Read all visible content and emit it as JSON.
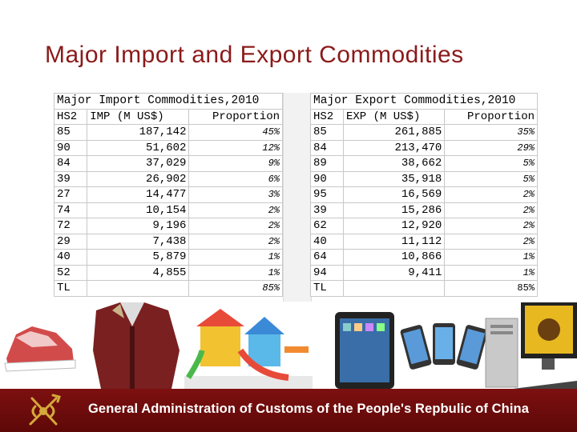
{
  "title": "Major Import and Export Commodities",
  "import_table": {
    "caption": "Major Import Commodities,2010",
    "headers": [
      "HS2",
      "IMP (M US$)",
      "Proportion"
    ],
    "rows": [
      [
        "85",
        "187,142",
        "45%"
      ],
      [
        "90",
        "51,602",
        "12%"
      ],
      [
        "84",
        "37,029",
        "9%"
      ],
      [
        "39",
        "26,902",
        "6%"
      ],
      [
        "27",
        "14,477",
        "3%"
      ],
      [
        "74",
        "10,154",
        "2%"
      ],
      [
        "72",
        "9,196",
        "2%"
      ],
      [
        "29",
        "7,438",
        "2%"
      ],
      [
        "40",
        "5,879",
        "1%"
      ],
      [
        "52",
        "4,855",
        "1%"
      ]
    ],
    "total": [
      "TL",
      "",
      "85%"
    ]
  },
  "export_table": {
    "caption": "Major Export Commodities,2010",
    "headers": [
      "HS2",
      "EXP (M US$)",
      "Proportion"
    ],
    "rows": [
      [
        "85",
        "261,885",
        "35%"
      ],
      [
        "84",
        "213,470",
        "29%"
      ],
      [
        "89",
        "38,662",
        "5%"
      ],
      [
        "90",
        "35,918",
        "5%"
      ],
      [
        "95",
        "16,569",
        "2%"
      ],
      [
        "39",
        "15,286",
        "2%"
      ],
      [
        "62",
        "12,920",
        "2%"
      ],
      [
        "40",
        "11,112",
        "2%"
      ],
      [
        "64",
        "10,866",
        "1%"
      ],
      [
        "94",
        "9,411",
        "1%"
      ]
    ],
    "total": [
      "TL",
      "",
      "85%"
    ]
  },
  "footer": {
    "text": "General Administration of Customs of the People's Repbulic of China"
  },
  "colors": {
    "title": "#8b1a1a",
    "footer_bg": "#6e0c0c",
    "emblem": "#d4a93a"
  },
  "photo_icons": [
    "sneaker-icon",
    "coat-icon",
    "playground-icon",
    "tablet-icon",
    "smartphones-icon",
    "desktop-computer-icon"
  ]
}
